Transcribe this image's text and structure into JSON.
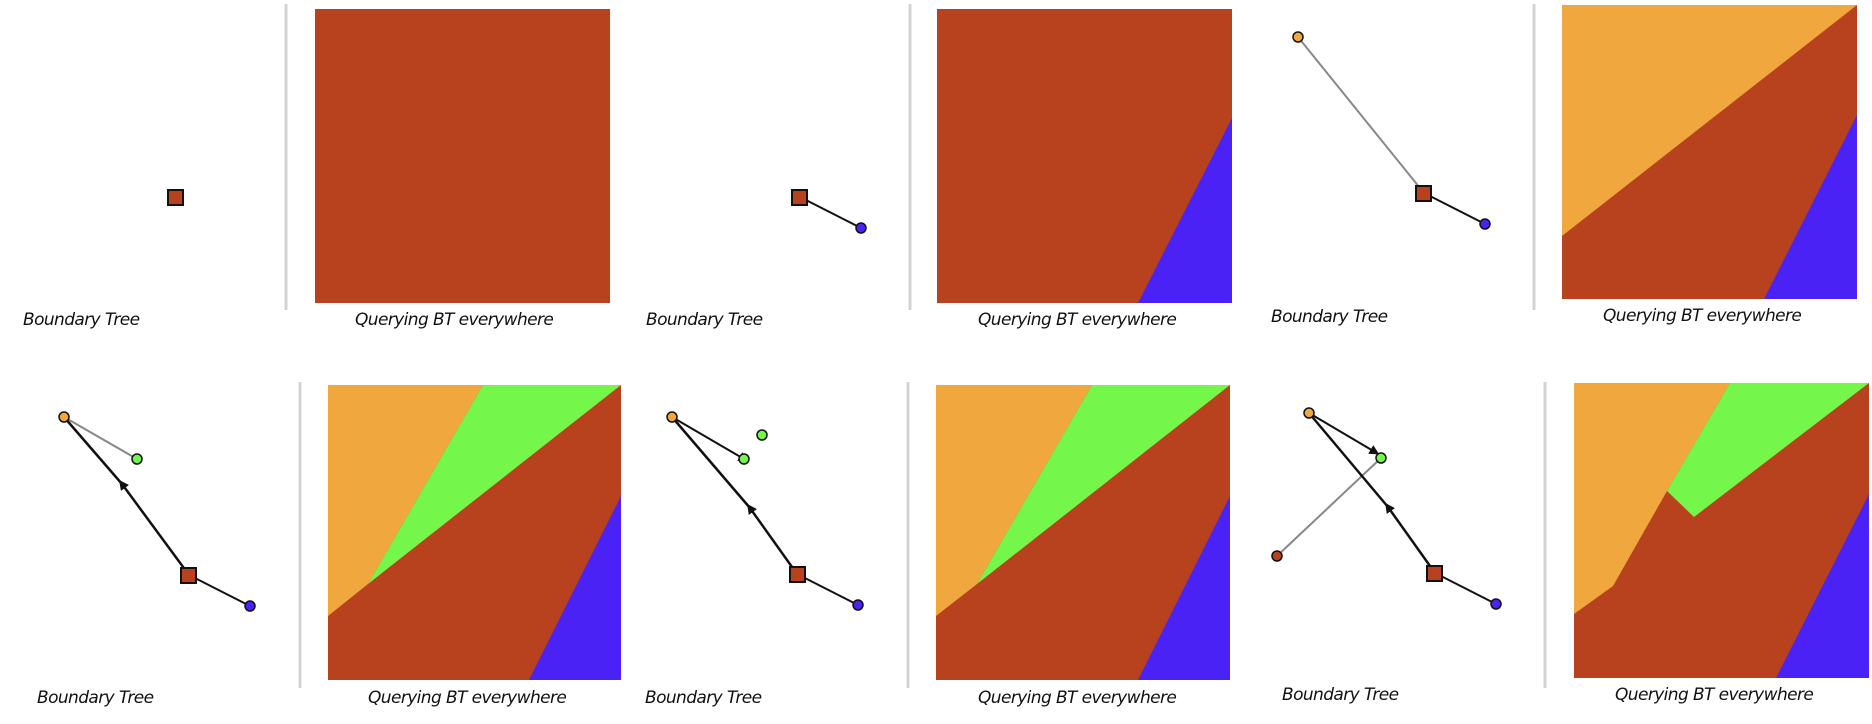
{
  "labels": {
    "boundary_tree": "Boundary Tree",
    "querying": "Querying BT everywhere"
  },
  "colors": {
    "red": "#B8411E",
    "orange": "#F0A83E",
    "green": "#74F64B",
    "blue": "#4B22F6",
    "divider": "#D3D3D3",
    "edge_gray": "#888888",
    "edge_dark": "#111111"
  },
  "icons": {
    "root_node": "square-node-icon",
    "leaf_node": "circle-node-icon",
    "direction": "arrowhead-icon"
  }
}
